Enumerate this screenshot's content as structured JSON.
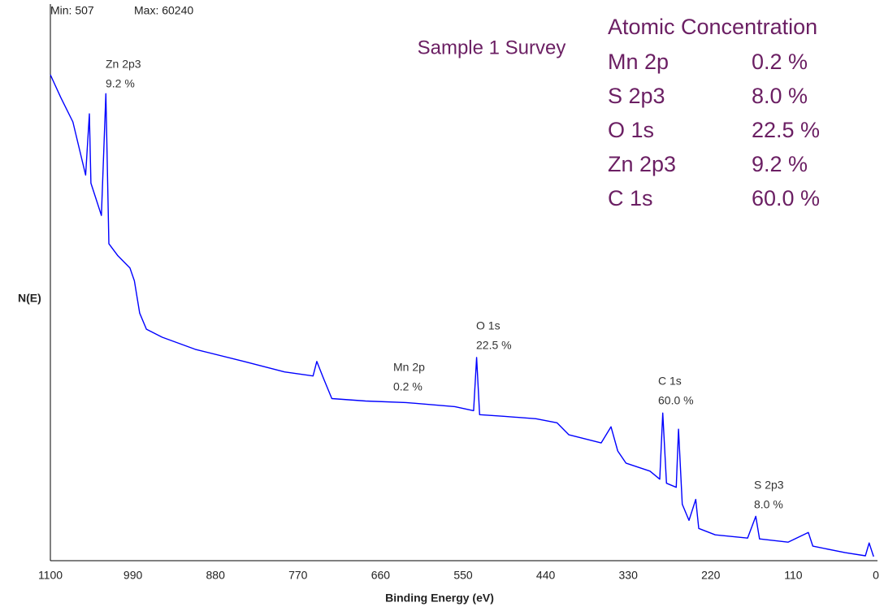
{
  "chart_data": {
    "type": "line",
    "title": "Sample 1 Survey",
    "xlabel": "Binding Energy (eV)",
    "ylabel": "N(E)",
    "min_label": "Min: 507",
    "max_label": "Max: 60240",
    "color": "#0000ff",
    "xlim": [
      1100,
      0
    ],
    "xticks": [
      1100,
      990,
      880,
      770,
      660,
      550,
      440,
      330,
      220,
      110,
      0
    ],
    "ylim": [
      0,
      68000
    ],
    "x": [
      1100,
      1086,
      1070,
      1053,
      1048,
      1046,
      1032,
      1026,
      1022,
      1010,
      994,
      988,
      981,
      972,
      951,
      907,
      842,
      788,
      750,
      745,
      736,
      725,
      680,
      626,
      561,
      536,
      532,
      528,
      496,
      453,
      425,
      409,
      366,
      353,
      344,
      333,
      301,
      288,
      284,
      279,
      266,
      263,
      258,
      249,
      240,
      236,
      214,
      171,
      160,
      155,
      117,
      90,
      84,
      41,
      14,
      9,
      3
    ],
    "values": [
      60240,
      57400,
      54400,
      47800,
      55400,
      46800,
      42800,
      57900,
      39300,
      37800,
      36300,
      34700,
      30700,
      28700,
      27700,
      26200,
      24700,
      23400,
      22900,
      24700,
      22600,
      20100,
      19800,
      19600,
      19100,
      18600,
      25200,
      18100,
      17900,
      17600,
      17100,
      15600,
      14600,
      16600,
      13600,
      12100,
      11100,
      10100,
      18300,
      9600,
      9100,
      16300,
      7000,
      5000,
      7600,
      4000,
      3200,
      2800,
      5500,
      2700,
      2300,
      3500,
      1800,
      1000,
      600,
      2200,
      507
    ],
    "peak_labels": [
      {
        "name": "Zn 2p3",
        "percent": "9.2 %"
      },
      {
        "name": "Mn 2p",
        "percent": "0.2 %"
      },
      {
        "name": "O 1s",
        "percent": "22.5 %"
      },
      {
        "name": "C 1s",
        "percent": "60.0 %"
      },
      {
        "name": "S 2p3",
        "percent": "8.0 %"
      }
    ],
    "table": {
      "title": "Atomic Concentration",
      "rows": [
        [
          "Mn 2p",
          "0.2 %"
        ],
        [
          "S 2p3",
          "8.0 %"
        ],
        [
          "O 1s",
          "22.5 %"
        ],
        [
          "Zn 2p3",
          "9.2 %"
        ],
        [
          "C 1s",
          "60.0 %"
        ]
      ]
    }
  }
}
